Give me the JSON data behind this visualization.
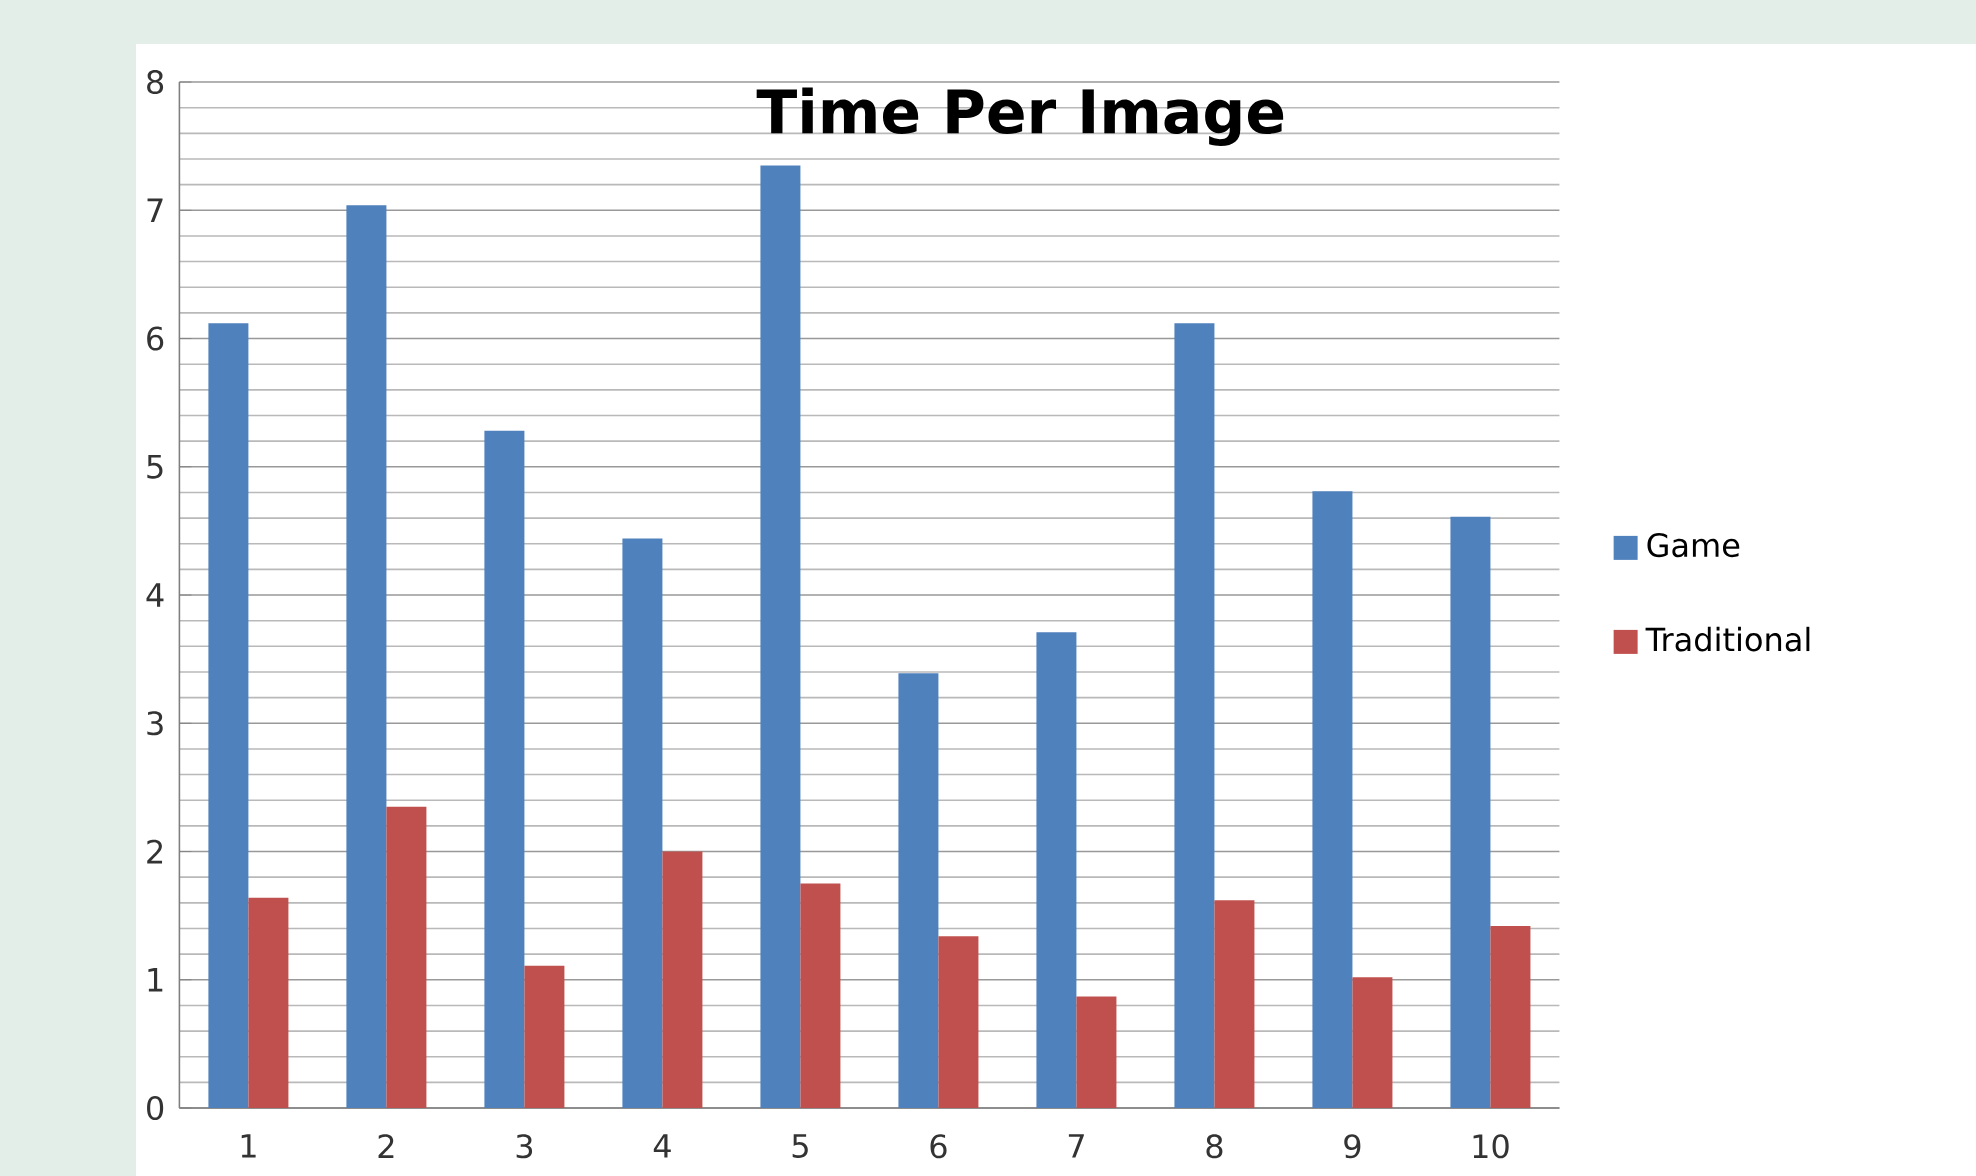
{
  "chart_data": {
    "type": "bar",
    "title": "Time Per Image",
    "categories": [
      "1",
      "2",
      "3",
      "4",
      "5",
      "6",
      "7",
      "8",
      "9",
      "10"
    ],
    "series": [
      {
        "name": "Game",
        "color": "#4f81bd",
        "values": [
          6.12,
          7.04,
          5.28,
          4.44,
          7.35,
          3.39,
          3.71,
          6.12,
          4.81,
          4.61
        ]
      },
      {
        "name": "Traditional",
        "color": "#c0504d",
        "values": [
          1.64,
          2.35,
          1.11,
          2.0,
          1.75,
          1.34,
          0.87,
          1.62,
          1.02,
          1.42
        ]
      }
    ],
    "ylim": [
      0,
      8
    ],
    "yticks": [
      0,
      1,
      2,
      3,
      4,
      5,
      6,
      7,
      8
    ],
    "grid": "y",
    "legend": "right"
  }
}
